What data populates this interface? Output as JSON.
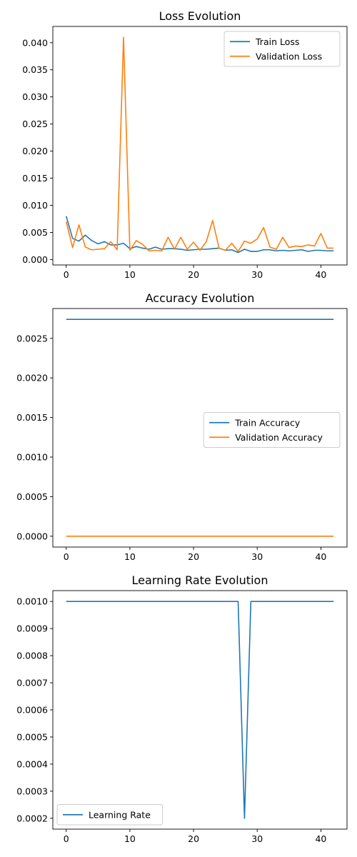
{
  "chart_data": [
    {
      "type": "line",
      "title": "Loss Evolution",
      "xlabel": "",
      "ylabel": "",
      "xlim": [
        -2.1,
        44.1
      ],
      "ylim": [
        -0.001,
        0.043
      ],
      "xticks": [
        0,
        10,
        20,
        30,
        40
      ],
      "yticks": [
        0.0,
        0.005,
        0.01,
        0.015,
        0.02,
        0.025,
        0.03,
        0.035,
        0.04
      ],
      "ytick_labels": [
        "0.000",
        "0.005",
        "0.010",
        "0.015",
        "0.020",
        "0.025",
        "0.030",
        "0.035",
        "0.040"
      ],
      "grid": false,
      "legend_position": "upper right",
      "series": [
        {
          "name": "Train Loss",
          "color": "#1f77b4",
          "x": [
            0,
            1,
            2,
            3,
            4,
            5,
            6,
            7,
            8,
            9,
            10,
            11,
            12,
            13,
            14,
            15,
            16,
            17,
            18,
            19,
            20,
            21,
            22,
            23,
            24,
            25,
            26,
            27,
            28,
            29,
            30,
            31,
            32,
            33,
            34,
            35,
            36,
            37,
            38,
            39,
            40,
            41,
            42
          ],
          "values": [
            0.008,
            0.0039,
            0.0034,
            0.0045,
            0.0035,
            0.0029,
            0.0033,
            0.0027,
            0.0027,
            0.003,
            0.002,
            0.0024,
            0.0021,
            0.0019,
            0.0023,
            0.0019,
            0.002,
            0.002,
            0.0019,
            0.0017,
            0.0018,
            0.0019,
            0.0019,
            0.002,
            0.0021,
            0.0017,
            0.0018,
            0.0013,
            0.0019,
            0.0015,
            0.0015,
            0.0018,
            0.0018,
            0.0016,
            0.0017,
            0.0016,
            0.0017,
            0.0018,
            0.0015,
            0.0017,
            0.0017,
            0.0016,
            0.0016
          ]
        },
        {
          "name": "Validation Loss",
          "color": "#ff7f0e",
          "x": [
            0,
            1,
            2,
            3,
            4,
            5,
            6,
            7,
            8,
            9,
            10,
            11,
            12,
            13,
            14,
            15,
            16,
            17,
            18,
            19,
            20,
            21,
            22,
            23,
            24,
            25,
            26,
            27,
            28,
            29,
            30,
            31,
            32,
            33,
            34,
            35,
            36,
            37,
            38,
            39,
            40,
            41,
            42
          ],
          "values": [
            0.007,
            0.0022,
            0.0064,
            0.0023,
            0.0018,
            0.0019,
            0.002,
            0.0033,
            0.0018,
            0.041,
            0.0017,
            0.0035,
            0.0028,
            0.0016,
            0.0017,
            0.0016,
            0.0041,
            0.0019,
            0.0041,
            0.0019,
            0.0032,
            0.0017,
            0.0033,
            0.0072,
            0.0021,
            0.0017,
            0.003,
            0.0015,
            0.0034,
            0.003,
            0.0038,
            0.0059,
            0.0023,
            0.0019,
            0.0041,
            0.0022,
            0.0025,
            0.0024,
            0.0027,
            0.0025,
            0.0048,
            0.0021,
            0.0021
          ]
        }
      ]
    },
    {
      "type": "line",
      "title": "Accuracy Evolution",
      "xlabel": "",
      "ylabel": "",
      "xlim": [
        -2.1,
        44.1
      ],
      "ylim": [
        -0.000137,
        0.002877
      ],
      "xticks": [
        0,
        10,
        20,
        30,
        40
      ],
      "yticks": [
        0.0,
        0.0005,
        0.001,
        0.0015,
        0.002,
        0.0025
      ],
      "ytick_labels": [
        "0.0000",
        "0.0005",
        "0.0010",
        "0.0015",
        "0.0020",
        "0.0025"
      ],
      "grid": false,
      "legend_position": "center right",
      "series": [
        {
          "name": "Train Accuracy",
          "color": "#1f77b4",
          "x": [
            0,
            42
          ],
          "values": [
            0.00274,
            0.00274
          ]
        },
        {
          "name": "Validation Accuracy",
          "color": "#ff7f0e",
          "x": [
            0,
            42
          ],
          "values": [
            0.0,
            0.0
          ]
        }
      ]
    },
    {
      "type": "line",
      "title": "Learning Rate Evolution",
      "xlabel": "",
      "ylabel": "",
      "xlim": [
        -2.1,
        44.1
      ],
      "ylim": [
        0.00016,
        0.00104
      ],
      "xticks": [
        0,
        10,
        20,
        30,
        40
      ],
      "yticks": [
        0.0002,
        0.0003,
        0.0004,
        0.0005,
        0.0006,
        0.0007,
        0.0008,
        0.0009,
        0.001
      ],
      "ytick_labels": [
        "0.0002",
        "0.0003",
        "0.0004",
        "0.0005",
        "0.0006",
        "0.0007",
        "0.0008",
        "0.0009",
        "0.0010"
      ],
      "grid": false,
      "legend_position": "lower left",
      "series": [
        {
          "name": "Learning Rate",
          "color": "#1f77b4",
          "x": [
            0,
            27,
            28,
            29,
            42
          ],
          "values": [
            0.001,
            0.001,
            0.0002,
            0.001,
            0.001
          ]
        }
      ]
    }
  ]
}
